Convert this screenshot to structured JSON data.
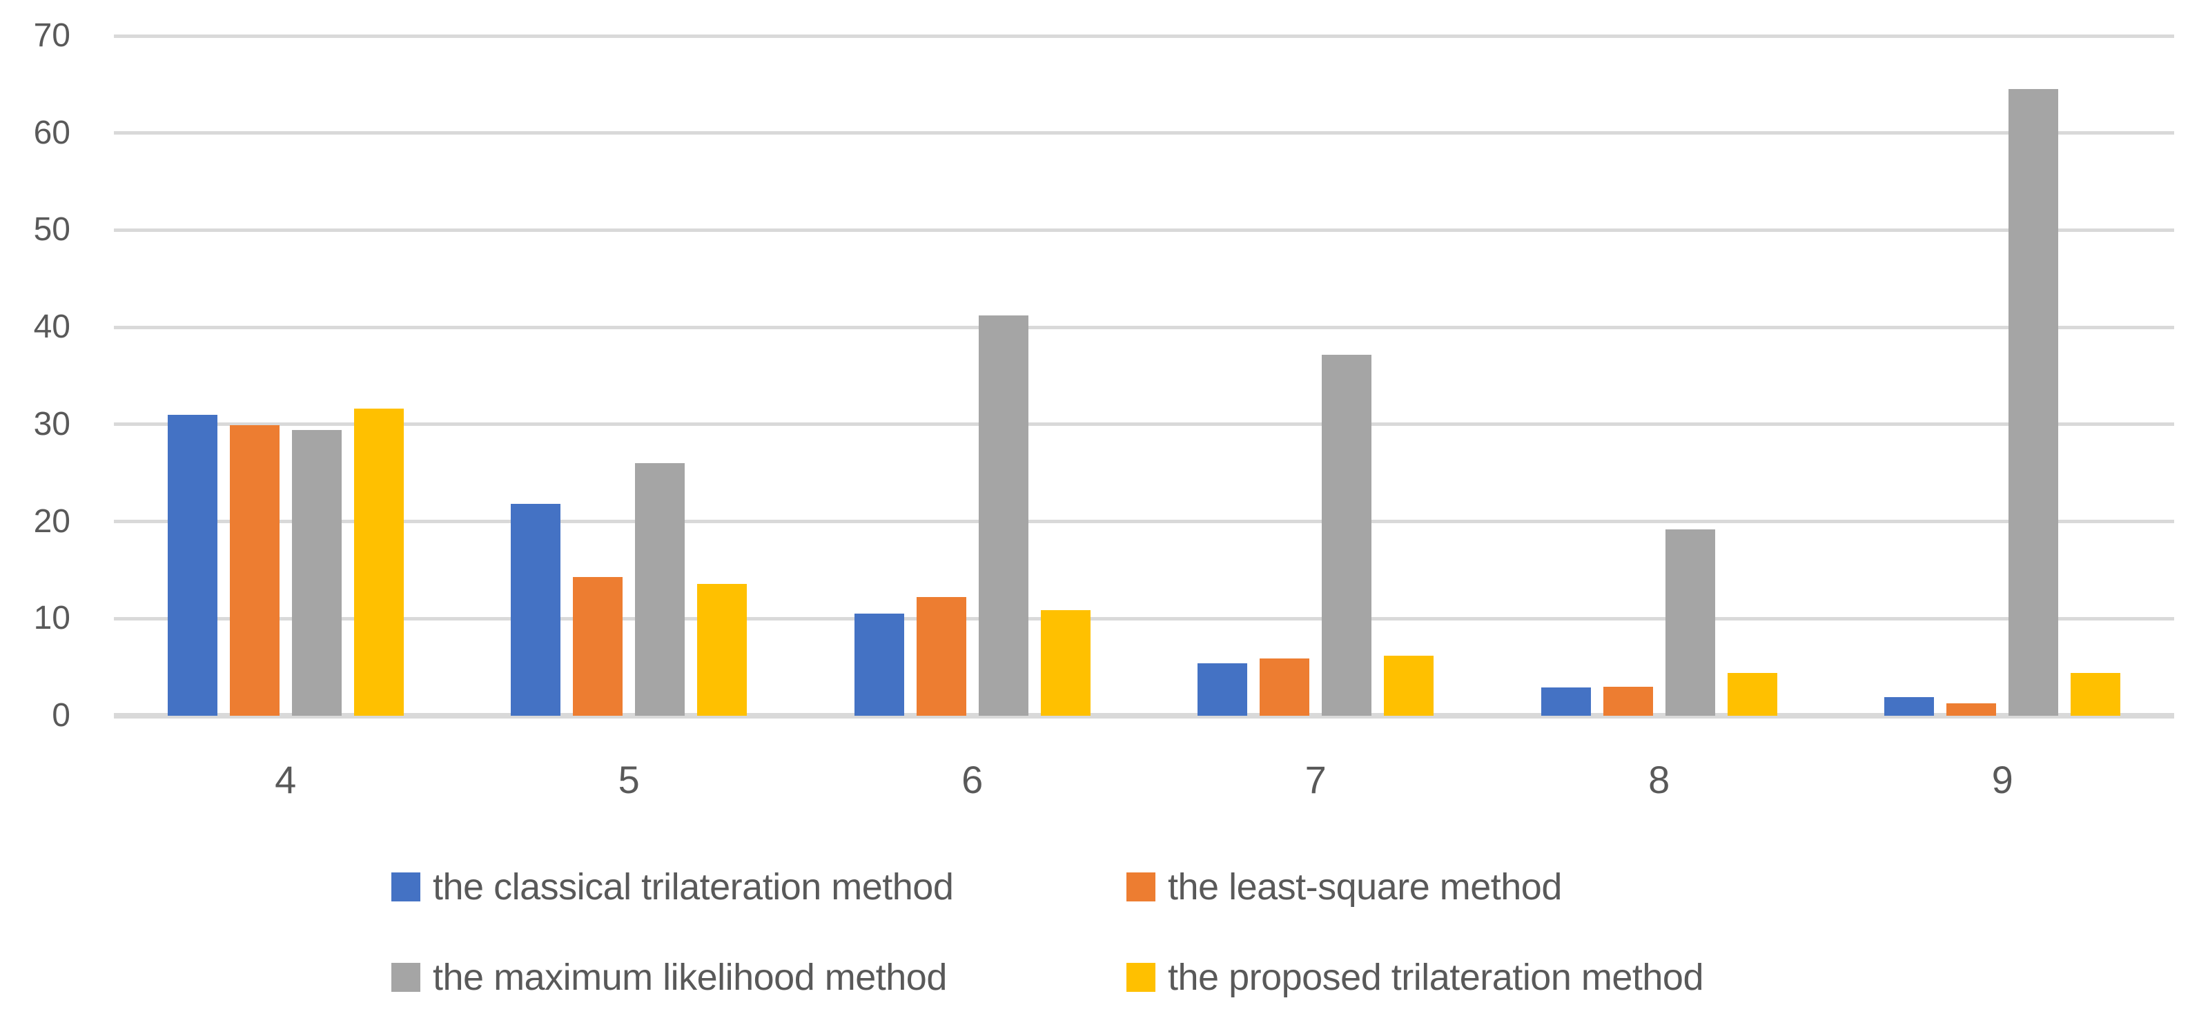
{
  "chart_data": {
    "type": "bar",
    "title": "",
    "xlabel": "",
    "ylabel": "",
    "categories": [
      "4",
      "5",
      "6",
      "7",
      "8",
      "9"
    ],
    "series": [
      {
        "name": "the classical trilateration method",
        "color": "#4472C4",
        "values": [
          31.0,
          21.8,
          10.5,
          5.4,
          2.9,
          1.9
        ]
      },
      {
        "name": "the least-square method",
        "color": "#ED7D31",
        "values": [
          29.9,
          14.3,
          12.2,
          5.9,
          3.0,
          1.3
        ]
      },
      {
        "name": "the maximum likelihood method",
        "color": "#A5A5A5",
        "values": [
          29.4,
          26.0,
          41.2,
          37.2,
          19.2,
          64.5
        ]
      },
      {
        "name": "the proposed trilateration method",
        "color": "#FFC000",
        "values": [
          31.6,
          13.6,
          10.9,
          6.2,
          4.4,
          4.4
        ]
      }
    ],
    "ylim": [
      0,
      70
    ],
    "ytick_step": 10,
    "ytick_labels": [
      "0",
      "10",
      "20",
      "30",
      "40",
      "50",
      "60",
      "70"
    ],
    "grid": true,
    "legend_position": "bottom",
    "legend_rows": 2,
    "colors": {
      "gridline": "#D9D9D9",
      "axis_line": "#D9D9D9",
      "axis_text": "#595959",
      "background": "#FFFFFF"
    }
  }
}
